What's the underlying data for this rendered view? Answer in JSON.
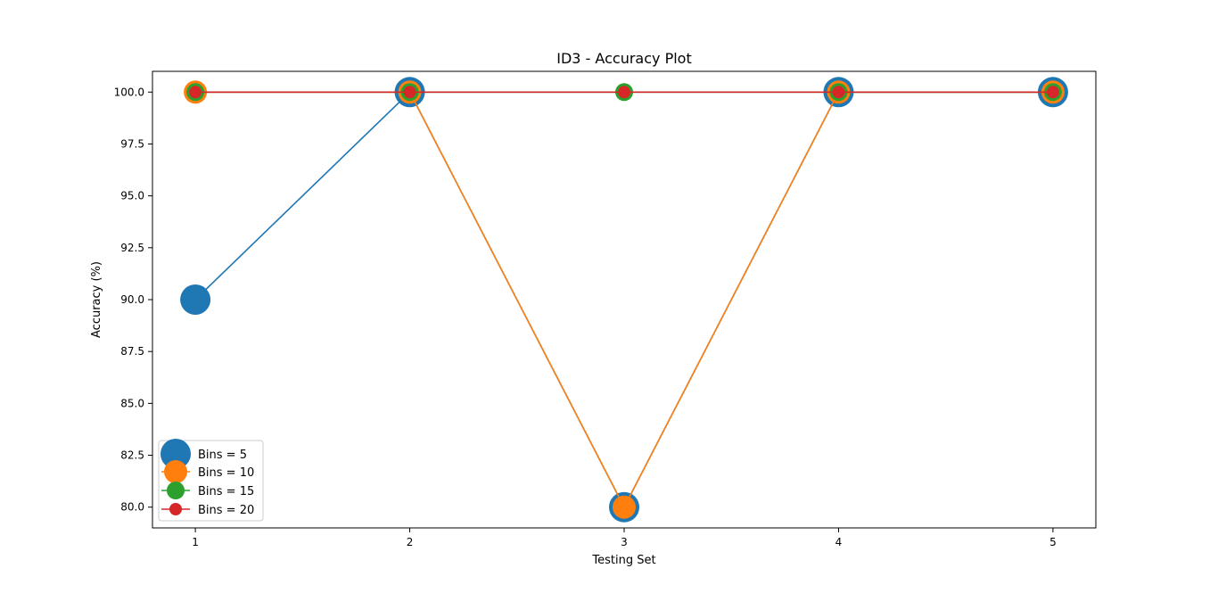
{
  "chart_data": {
    "type": "line",
    "title": "ID3 - Accuracy Plot",
    "xlabel": "Testing Set",
    "ylabel": "Accuracy (%)",
    "x": [
      1,
      2,
      3,
      4,
      5
    ],
    "xticks": [
      "1",
      "2",
      "3",
      "4",
      "5"
    ],
    "yticks": [
      "80.0",
      "82.5",
      "85.0",
      "87.5",
      "90.0",
      "92.5",
      "95.0",
      "97.5",
      "100.0"
    ],
    "xlim": [
      0.8,
      5.2
    ],
    "ylim": [
      79.0,
      101.0
    ],
    "grid": false,
    "legend_position": "lower-left",
    "series": [
      {
        "name": "Bins = 5",
        "values": [
          90,
          100,
          80,
          100,
          100
        ],
        "color": "#1f77b4",
        "marker": "large"
      },
      {
        "name": "Bins = 10",
        "values": [
          100,
          100,
          80,
          100,
          100
        ],
        "color": "#ff7f0e",
        "marker": "medium-large"
      },
      {
        "name": "Bins = 15",
        "values": [
          100,
          100,
          100,
          100,
          100
        ],
        "color": "#2ca02c",
        "marker": "medium"
      },
      {
        "name": "Bins = 20",
        "values": [
          100,
          100,
          100,
          100,
          100
        ],
        "color": "#d62728",
        "marker": "small"
      }
    ]
  }
}
